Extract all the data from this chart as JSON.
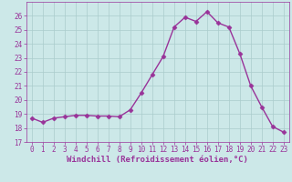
{
  "x": [
    0,
    1,
    2,
    3,
    4,
    5,
    6,
    7,
    8,
    9,
    10,
    11,
    12,
    13,
    14,
    15,
    16,
    17,
    18,
    19,
    20,
    21,
    22,
    23
  ],
  "y": [
    18.7,
    18.4,
    18.7,
    18.8,
    18.9,
    18.9,
    18.85,
    18.85,
    18.8,
    19.3,
    20.5,
    21.8,
    23.1,
    25.2,
    25.9,
    25.6,
    26.3,
    25.5,
    25.2,
    23.3,
    21.0,
    19.5,
    18.1,
    17.7
  ],
  "line_color": "#993399",
  "marker": "D",
  "marker_size": 2.5,
  "bg_color": "#cce8e8",
  "grid_color": "#aacccc",
  "title": "",
  "xlabel": "Windchill (Refroidissement éolien,°C)",
  "ylabel": "",
  "xlim": [
    -0.5,
    23.5
  ],
  "ylim": [
    17,
    27
  ],
  "yticks": [
    17,
    18,
    19,
    20,
    21,
    22,
    23,
    24,
    25,
    26
  ],
  "xticks": [
    0,
    1,
    2,
    3,
    4,
    5,
    6,
    7,
    8,
    9,
    10,
    11,
    12,
    13,
    14,
    15,
    16,
    17,
    18,
    19,
    20,
    21,
    22,
    23
  ],
  "tick_color": "#993399",
  "tick_fontsize": 5.5,
  "xlabel_fontsize": 6.5,
  "linewidth": 1.0
}
